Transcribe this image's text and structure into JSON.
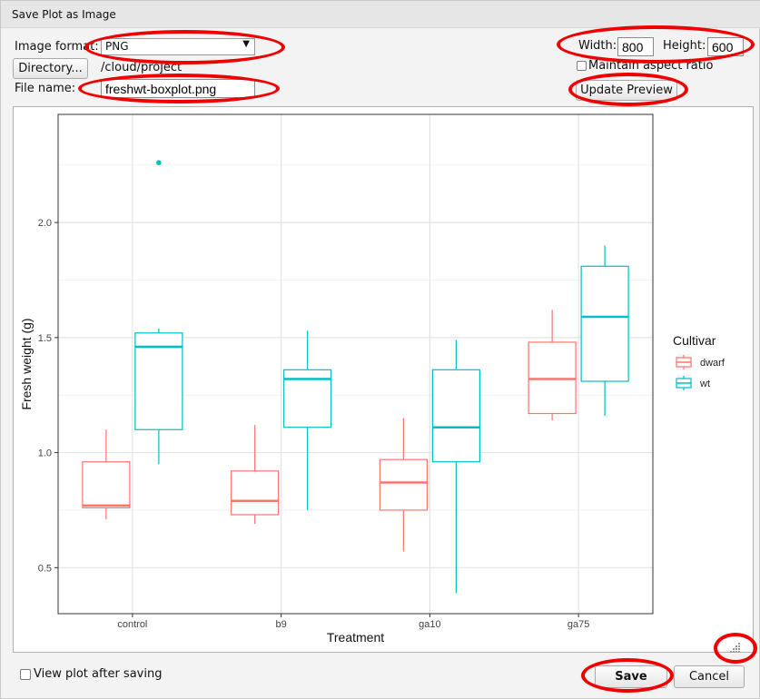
{
  "window": {
    "title": "Save Plot as Image"
  },
  "form": {
    "format_label": "Image format:",
    "format_value": "PNG",
    "directory_button": "Directory...",
    "directory_path": "/cloud/project",
    "filename_label": "File name:",
    "filename_value": "freshwt-boxplot.png",
    "width_label": "Width:",
    "width_value": "800",
    "height_label": "Height:",
    "height_value": "600",
    "aspect_label": "Maintain aspect ratio",
    "update_button": "Update Preview"
  },
  "footer": {
    "view_after_label": "View plot after saving",
    "save_button": "Save",
    "cancel_button": "Cancel"
  },
  "colors": {
    "dwarf": "#F8766D",
    "wt": "#00BFC4",
    "highlight": "#EE0000"
  },
  "chart_data": {
    "type": "boxplot",
    "title": "",
    "xlabel": "Treatment",
    "ylabel": "Fresh weight (g)",
    "categories": [
      "control",
      "b9",
      "ga10",
      "ga75"
    ],
    "ylim": [
      0.3,
      2.47
    ],
    "yticks": [
      0.5,
      1.0,
      1.5,
      2.0
    ],
    "ytick_labels": [
      "0.5",
      "1.0",
      "1.5",
      "2.0"
    ],
    "grid": true,
    "legend": {
      "title": "Cultivar",
      "placement": "right"
    },
    "series": [
      {
        "name": "dwarf",
        "color": "#F8766D",
        "boxes": [
          {
            "min": 0.71,
            "q1": 0.76,
            "median": 0.77,
            "q3": 0.96,
            "max": 1.1,
            "outliers": []
          },
          {
            "min": 0.69,
            "q1": 0.73,
            "median": 0.79,
            "q3": 0.92,
            "max": 1.12,
            "outliers": []
          },
          {
            "min": 0.57,
            "q1": 0.75,
            "median": 0.87,
            "q3": 0.97,
            "max": 1.15,
            "outliers": []
          },
          {
            "min": 1.14,
            "q1": 1.17,
            "median": 1.32,
            "q3": 1.48,
            "max": 1.62,
            "outliers": []
          }
        ]
      },
      {
        "name": "wt",
        "color": "#00BFC4",
        "boxes": [
          {
            "min": 0.95,
            "q1": 1.1,
            "median": 1.46,
            "q3": 1.52,
            "max": 1.54,
            "outliers": [
              2.26
            ]
          },
          {
            "min": 0.75,
            "q1": 1.11,
            "median": 1.32,
            "q3": 1.36,
            "max": 1.53,
            "outliers": []
          },
          {
            "min": 0.39,
            "q1": 0.96,
            "median": 1.11,
            "q3": 1.36,
            "max": 1.49,
            "outliers": []
          },
          {
            "min": 1.16,
            "q1": 1.31,
            "median": 1.59,
            "q3": 1.81,
            "max": 1.9,
            "outliers": []
          }
        ]
      }
    ]
  }
}
